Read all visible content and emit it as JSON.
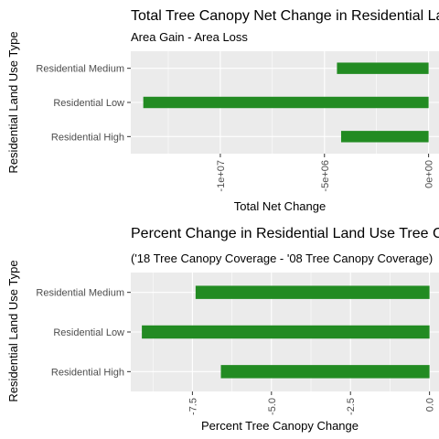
{
  "chart_data": [
    {
      "type": "bar",
      "orientation": "horizontal",
      "title": "Total Tree Canopy Net Change in Residential Land Use",
      "subtitle": "Area Gain - Area Loss",
      "xlabel": "Total Net Change",
      "ylabel": "Residential Land Use Type",
      "categories": [
        "Residential High",
        "Residential Low",
        "Residential Medium"
      ],
      "values": [
        -4200000,
        -13700000,
        -4400000
      ],
      "xlim": [
        -14300000,
        500000
      ],
      "xticks": [
        -10000000,
        -5000000,
        0
      ],
      "xtick_labels": [
        "-1e+07",
        "-5e+06",
        "0e+00"
      ],
      "bar_color": "#228b22",
      "grid": true
    },
    {
      "type": "bar",
      "orientation": "horizontal",
      "title": "Percent Change in Residential Land Use Tree Canopy",
      "subtitle": "('18 Tree Canopy Coverage - '08 Tree Canopy Coverage)",
      "xlabel": "Percent Tree Canopy Change",
      "ylabel": "Residential Land Use Type",
      "categories": [
        "Residential High",
        "Residential Low",
        "Residential Medium"
      ],
      "values": [
        -6.6,
        -9.1,
        -7.4
      ],
      "xlim": [
        -9.45,
        0.3
      ],
      "xticks": [
        -7.5,
        -5.0,
        -2.5,
        0.0
      ],
      "xtick_labels": [
        "-7.5",
        "-5.0",
        "-2.5",
        "0.0"
      ],
      "bar_color": "#228b22",
      "grid": true
    }
  ]
}
